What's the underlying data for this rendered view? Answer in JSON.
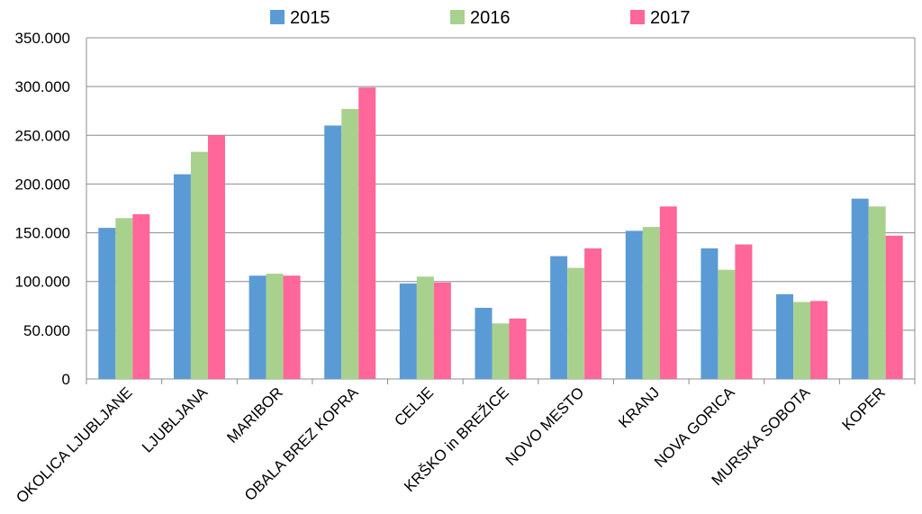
{
  "chart_data": {
    "type": "bar",
    "categories": [
      "OKOLICA LJUBLJANE",
      "LJUBLJANA",
      "MARIBOR",
      "OBALA BREZ KOPRA",
      "CELJE",
      "KRŠKO in BREŽICE",
      "NOVO MESTO",
      "KRANJ",
      "NOVA GORICA",
      "MURSKA SOBOTA",
      "KOPER"
    ],
    "series": [
      {
        "name": "2015",
        "color": "#5b9bd5",
        "values": [
          155000,
          210000,
          106000,
          260000,
          98000,
          73000,
          126000,
          152000,
          134000,
          87000,
          185000
        ]
      },
      {
        "name": "2016",
        "color": "#a9d18e",
        "values": [
          165000,
          233000,
          108000,
          277000,
          105000,
          57000,
          114000,
          156000,
          112000,
          79000,
          177000
        ]
      },
      {
        "name": "2017",
        "color": "#ff6699",
        "values": [
          169000,
          250000,
          106000,
          299000,
          99000,
          62000,
          134000,
          177000,
          138000,
          80000,
          147000
        ]
      }
    ],
    "yticks": [
      "0",
      "50.000",
      "100.000",
      "150.000",
      "200.000",
      "250.000",
      "300.000",
      "350.000"
    ],
    "ylim": [
      0,
      350000
    ],
    "grid": true,
    "legend_position": "top-center",
    "title": "",
    "xlabel": "",
    "ylabel": ""
  }
}
